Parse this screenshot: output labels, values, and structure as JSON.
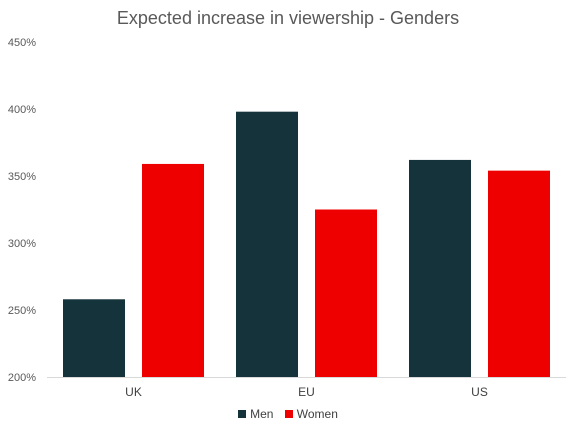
{
  "chart_data": {
    "type": "bar",
    "title": "Expected increase in viewership - Genders",
    "categories": [
      "UK",
      "EU",
      "US"
    ],
    "series": [
      {
        "name": "Men",
        "color": "#15333a",
        "values": [
          2.58,
          3.98,
          3.62
        ]
      },
      {
        "name": "Women",
        "color": "#ef0000",
        "values": [
          3.59,
          3.25,
          3.54
        ]
      }
    ],
    "ylim": [
      2.0,
      4.5
    ],
    "yticks": [
      "200%",
      "250%",
      "300%",
      "350%",
      "400%",
      "450%"
    ],
    "grid": false,
    "legend": "bottom"
  }
}
